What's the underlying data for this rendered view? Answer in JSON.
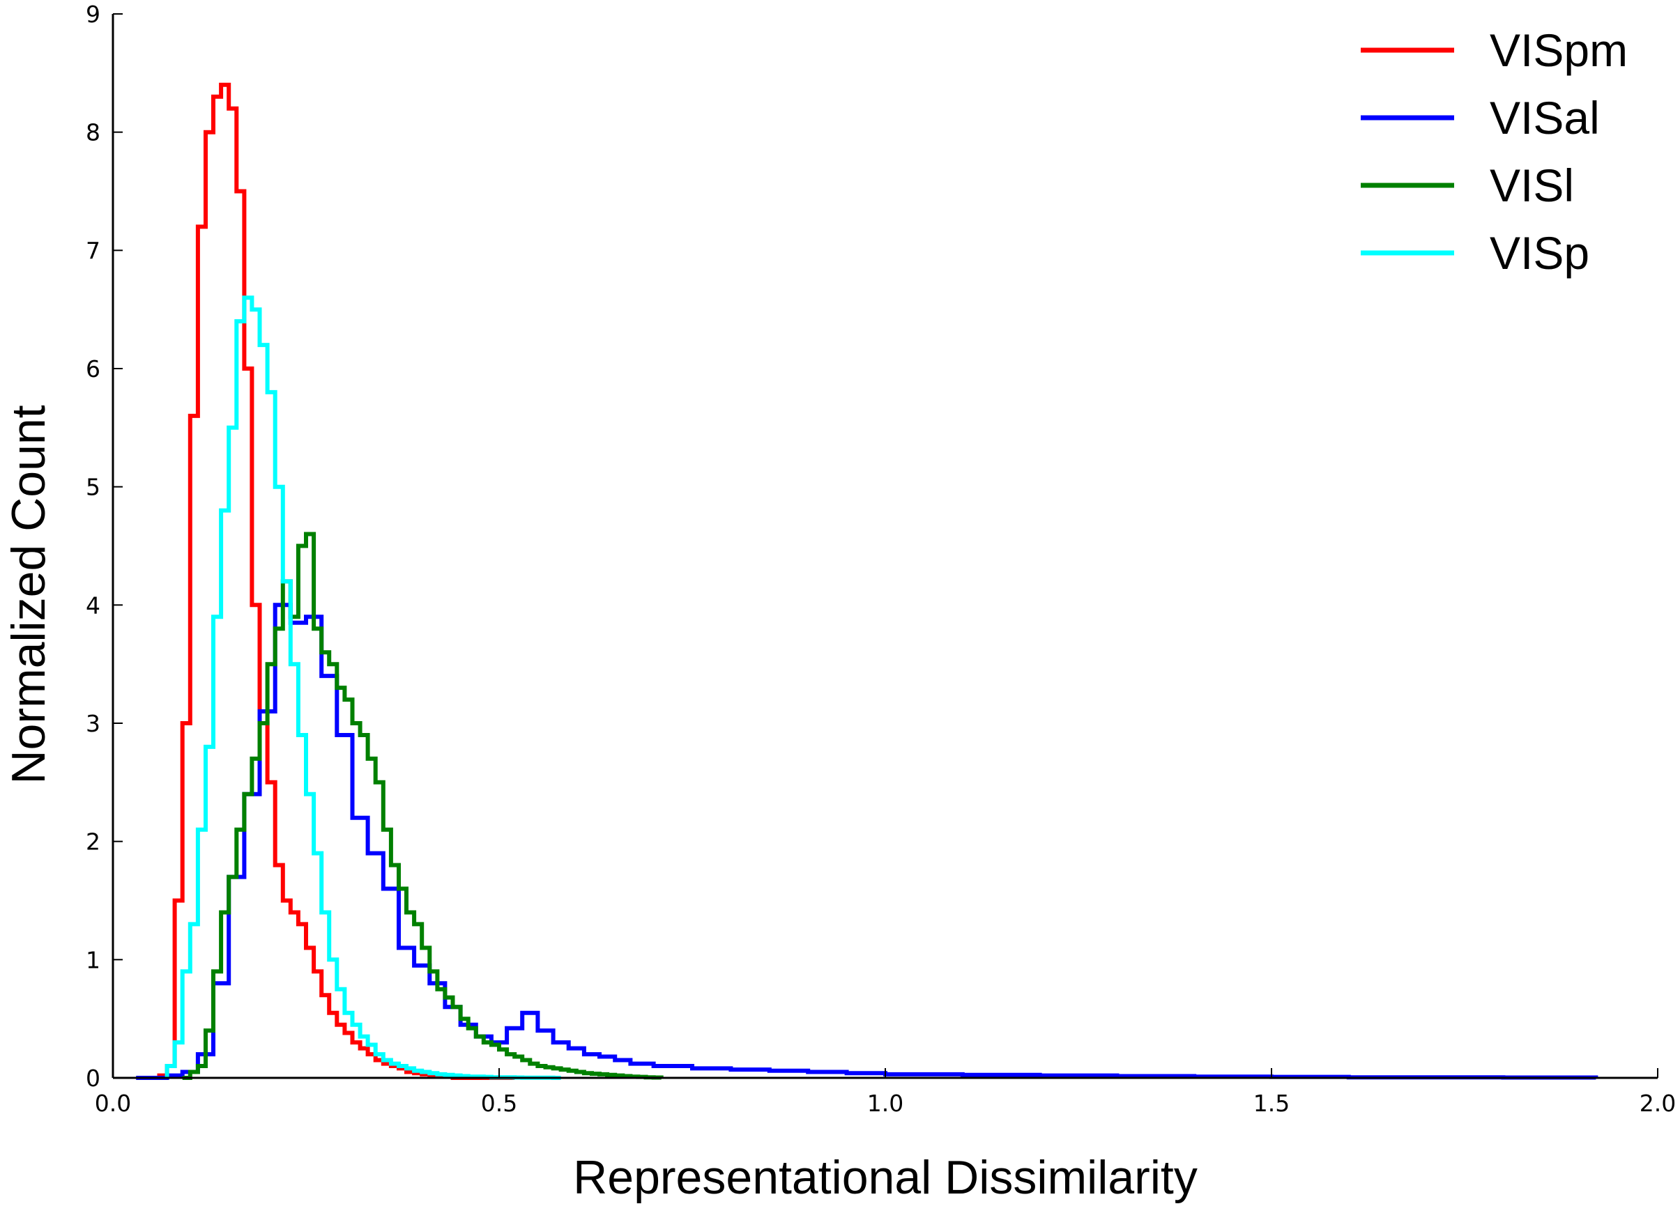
{
  "chart_data": {
    "type": "line",
    "subtype": "step-histogram",
    "xlabel": "Representational Dissimilarity",
    "ylabel": "Normalized Count",
    "xlim": [
      0.0,
      2.0
    ],
    "ylim": [
      0,
      9
    ],
    "xticks": [
      "0.0",
      "0.5",
      "1.0",
      "1.5",
      "2.0"
    ],
    "yticks": [
      "0",
      "1",
      "2",
      "3",
      "4",
      "5",
      "6",
      "7",
      "8",
      "9"
    ],
    "grid": false,
    "legend_position": "top-right",
    "series": [
      {
        "name": "VISpm",
        "color": "#ff0000",
        "x": [
          0.06,
          0.07,
          0.08,
          0.09,
          0.1,
          0.11,
          0.12,
          0.13,
          0.14,
          0.15,
          0.16,
          0.17,
          0.18,
          0.19,
          0.2,
          0.21,
          0.22,
          0.23,
          0.24,
          0.25,
          0.26,
          0.27,
          0.28,
          0.29,
          0.3,
          0.31,
          0.32,
          0.33,
          0.34,
          0.35,
          0.36,
          0.37,
          0.38,
          0.39,
          0.4,
          0.41,
          0.42,
          0.43,
          0.44,
          0.45,
          0.46,
          0.47,
          0.48,
          0.49,
          0.5,
          0.51,
          0.52
        ],
        "values": [
          0.02,
          0.1,
          1.5,
          3.0,
          5.6,
          7.2,
          8.0,
          8.3,
          8.4,
          8.2,
          7.5,
          6.0,
          4.0,
          3.0,
          2.5,
          1.8,
          1.5,
          1.4,
          1.3,
          1.1,
          0.9,
          0.7,
          0.55,
          0.45,
          0.38,
          0.3,
          0.25,
          0.2,
          0.15,
          0.12,
          0.1,
          0.08,
          0.05,
          0.04,
          0.03,
          0.02,
          0.01,
          0.01,
          0.0,
          0.0,
          0.0,
          0.0,
          0.0,
          0.0,
          0.0,
          0.0,
          0.0
        ]
      },
      {
        "name": "VISal",
        "color": "#0000ff",
        "x": [
          0.03,
          0.07,
          0.09,
          0.11,
          0.13,
          0.15,
          0.17,
          0.19,
          0.21,
          0.23,
          0.25,
          0.27,
          0.29,
          0.31,
          0.33,
          0.35,
          0.37,
          0.39,
          0.41,
          0.43,
          0.45,
          0.47,
          0.49,
          0.51,
          0.53,
          0.55,
          0.57,
          0.59,
          0.61,
          0.63,
          0.65,
          0.67,
          0.7,
          0.75,
          0.8,
          0.85,
          0.9,
          0.95,
          1.0,
          1.1,
          1.2,
          1.3,
          1.4,
          1.5,
          1.6,
          1.7,
          1.8,
          1.92
        ],
        "values": [
          0.0,
          0.02,
          0.05,
          0.2,
          0.8,
          1.7,
          2.4,
          3.1,
          4.0,
          3.85,
          3.9,
          3.4,
          2.9,
          2.2,
          1.9,
          1.6,
          1.1,
          0.95,
          0.8,
          0.6,
          0.45,
          0.35,
          0.3,
          0.42,
          0.55,
          0.4,
          0.3,
          0.25,
          0.2,
          0.18,
          0.15,
          0.12,
          0.1,
          0.08,
          0.07,
          0.06,
          0.05,
          0.04,
          0.03,
          0.025,
          0.02,
          0.015,
          0.01,
          0.008,
          0.005,
          0.004,
          0.003,
          0.0
        ]
      },
      {
        "name": "VISl",
        "color": "#008000",
        "x": [
          0.09,
          0.1,
          0.11,
          0.12,
          0.13,
          0.14,
          0.15,
          0.16,
          0.17,
          0.18,
          0.19,
          0.2,
          0.21,
          0.22,
          0.23,
          0.24,
          0.25,
          0.26,
          0.27,
          0.28,
          0.29,
          0.3,
          0.31,
          0.32,
          0.33,
          0.34,
          0.35,
          0.36,
          0.37,
          0.38,
          0.39,
          0.4,
          0.41,
          0.42,
          0.43,
          0.44,
          0.45,
          0.46,
          0.47,
          0.48,
          0.49,
          0.5,
          0.51,
          0.52,
          0.53,
          0.54,
          0.55,
          0.56,
          0.57,
          0.58,
          0.59,
          0.6,
          0.61,
          0.62,
          0.63,
          0.64,
          0.65,
          0.66,
          0.67,
          0.68,
          0.69,
          0.7,
          0.71
        ],
        "values": [
          0.0,
          0.05,
          0.1,
          0.4,
          0.9,
          1.4,
          1.7,
          2.1,
          2.4,
          2.7,
          3.0,
          3.5,
          3.8,
          4.2,
          3.9,
          4.5,
          4.6,
          3.8,
          3.6,
          3.5,
          3.3,
          3.2,
          3.0,
          2.9,
          2.7,
          2.5,
          2.1,
          1.8,
          1.6,
          1.4,
          1.3,
          1.1,
          0.9,
          0.75,
          0.68,
          0.6,
          0.5,
          0.42,
          0.35,
          0.3,
          0.28,
          0.24,
          0.2,
          0.18,
          0.15,
          0.12,
          0.1,
          0.09,
          0.08,
          0.07,
          0.06,
          0.05,
          0.04,
          0.035,
          0.03,
          0.025,
          0.02,
          0.015,
          0.01,
          0.008,
          0.005,
          0.003,
          0.0
        ]
      },
      {
        "name": "VISp",
        "color": "#00ffff",
        "x": [
          0.07,
          0.08,
          0.09,
          0.1,
          0.11,
          0.12,
          0.13,
          0.14,
          0.15,
          0.16,
          0.17,
          0.18,
          0.19,
          0.2,
          0.21,
          0.22,
          0.23,
          0.24,
          0.25,
          0.26,
          0.27,
          0.28,
          0.29,
          0.3,
          0.31,
          0.32,
          0.33,
          0.34,
          0.35,
          0.36,
          0.37,
          0.38,
          0.39,
          0.4,
          0.41,
          0.42,
          0.43,
          0.44,
          0.45,
          0.46,
          0.47,
          0.48,
          0.49,
          0.5,
          0.51,
          0.52,
          0.53,
          0.54,
          0.55,
          0.56,
          0.57,
          0.58
        ],
        "values": [
          0.1,
          0.3,
          0.9,
          1.3,
          2.1,
          2.8,
          3.9,
          4.8,
          5.5,
          6.4,
          6.6,
          6.5,
          6.2,
          5.8,
          5.0,
          4.2,
          3.5,
          2.9,
          2.4,
          1.9,
          1.4,
          1.0,
          0.75,
          0.55,
          0.45,
          0.35,
          0.28,
          0.2,
          0.15,
          0.12,
          0.1,
          0.08,
          0.06,
          0.05,
          0.04,
          0.03,
          0.025,
          0.02,
          0.015,
          0.01,
          0.01,
          0.008,
          0.005,
          0.005,
          0.004,
          0.003,
          0.002,
          0.002,
          0.001,
          0.001,
          0.0,
          0.0
        ]
      }
    ]
  }
}
